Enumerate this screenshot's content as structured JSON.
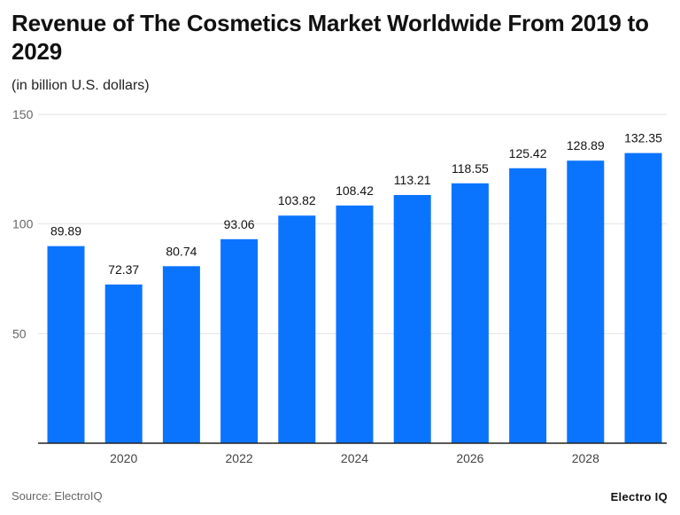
{
  "chart_data": {
    "type": "bar",
    "title": "Revenue of The Cosmetics Market Worldwide From 2019 to 2029",
    "subtitle": "(in billion U.S. dollars)",
    "categories": [
      "2019",
      "2020",
      "2021",
      "2022",
      "2023",
      "2024",
      "2025",
      "2026",
      "2027",
      "2028",
      "2029"
    ],
    "values": [
      89.89,
      72.37,
      80.74,
      93.06,
      103.82,
      108.42,
      113.21,
      118.55,
      125.42,
      128.89,
      132.35
    ],
    "value_labels": [
      "89.89",
      "72.37",
      "80.74",
      "93.06",
      "103.82",
      "108.42",
      "113.21",
      "118.55",
      "125.42",
      "128.89",
      "132.35"
    ],
    "x_tick_labels": [
      "2020",
      "2022",
      "2024",
      "2026",
      "2028"
    ],
    "y_tick_labels": [
      "50",
      "100",
      "150"
    ],
    "y_ticks": [
      50,
      100,
      150
    ],
    "ylim": [
      0,
      150
    ],
    "xlabel": "",
    "ylabel": "",
    "grid": true,
    "bar_color": "#0a74ff"
  },
  "footer": {
    "source": "Source: ElectroIQ",
    "brand": "Electro IQ"
  }
}
